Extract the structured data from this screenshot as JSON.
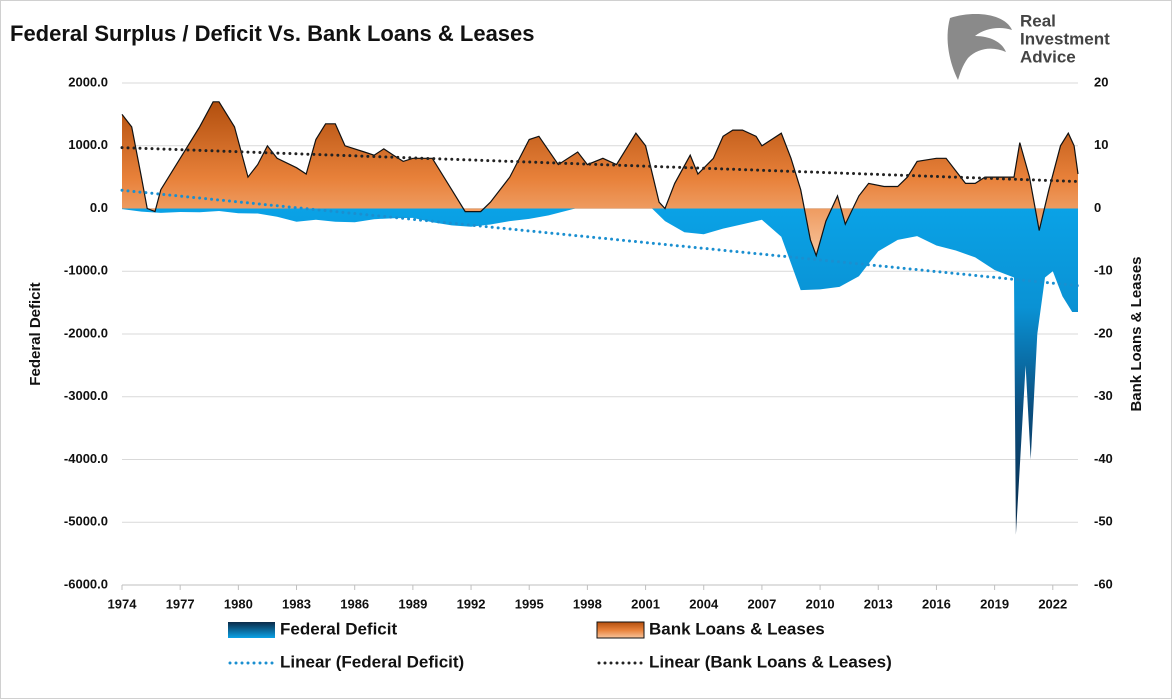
{
  "chart_data": {
    "type": "area",
    "title": "Federal Surplus / Deficit Vs. Bank Loans & Leases",
    "logo": [
      "Real",
      "Investment",
      "Advice"
    ],
    "ylabel": "Federal Deficit",
    "y2label": "Bank Loans & Leases",
    "xlim": [
      1974,
      2023.3
    ],
    "xticks": [
      1974,
      1977,
      1980,
      1983,
      1986,
      1989,
      1992,
      1995,
      1998,
      2001,
      2004,
      2007,
      2010,
      2013,
      2016,
      2019,
      2022
    ],
    "ylim": [
      -6000,
      2000
    ],
    "yticks": [
      {
        "value": 2000,
        "label": "2000.0"
      },
      {
        "value": 1000,
        "label": "1000.0"
      },
      {
        "value": 0,
        "label": "0.0"
      },
      {
        "value": -1000,
        "label": "-1000.0"
      },
      {
        "value": -2000,
        "label": "-2000.0"
      },
      {
        "value": -3000,
        "label": "-3000.0"
      },
      {
        "value": -4000,
        "label": "-4000.0"
      },
      {
        "value": -5000,
        "label": "-5000.0"
      },
      {
        "value": -6000,
        "label": "-6000.0"
      }
    ],
    "y2lim": [
      -60,
      20
    ],
    "y2ticks": [
      20,
      10,
      0,
      -10,
      -20,
      -30,
      -40,
      -50,
      -60
    ],
    "grid": true,
    "legend": "bottom",
    "series": [
      {
        "name": "Federal Deficit",
        "color": "#0a9ee0",
        "style": "area",
        "axis": "y",
        "x": [
          1974,
          1975,
          1976,
          1977,
          1978,
          1979,
          1980,
          1981,
          1982,
          1983,
          1984,
          1985,
          1986,
          1987,
          1988,
          1989,
          1990,
          1991,
          1992,
          1993,
          1994,
          1995,
          1996,
          1997,
          1998,
          1999,
          2000,
          2001,
          2002,
          2003,
          2004,
          2005,
          2006,
          2007,
          2008,
          2009,
          2010,
          2011,
          2012,
          2013,
          2014,
          2015,
          2016,
          2017,
          2018,
          2019,
          2020,
          2020.1,
          2020.6,
          2020.86,
          2021.2,
          2021.6,
          2022,
          2022.5,
          2023,
          2023.3
        ],
        "values": [
          -10,
          -50,
          -70,
          -55,
          -60,
          -40,
          -75,
          -80,
          -130,
          -210,
          -180,
          -210,
          -220,
          -170,
          -155,
          -150,
          -220,
          -270,
          -290,
          -255,
          -200,
          -165,
          -110,
          -30,
          50,
          120,
          240,
          100,
          -200,
          -380,
          -410,
          -320,
          -250,
          -180,
          -450,
          -1300,
          -1290,
          -1250,
          -1080,
          -680,
          -500,
          -440,
          -590,
          -670,
          -780,
          -980,
          -1100,
          -5200,
          -2500,
          -4000,
          -2000,
          -1100,
          -1000,
          -1400,
          -1650,
          -1650
        ]
      },
      {
        "name": "Bank Loans & Leases",
        "color": "#e8813a",
        "style": "area",
        "axis": "y2",
        "x": [
          1974,
          1974.5,
          1975,
          1975.3,
          1975.7,
          1976,
          1977,
          1978,
          1978.7,
          1979,
          1979.8,
          1980.5,
          1981,
          1981.5,
          1982,
          1983,
          1983.5,
          1984,
          1984.5,
          1985,
          1985.5,
          1986.5,
          1987,
          1987.5,
          1988,
          1988.5,
          1989,
          1990,
          1991,
          1991.7,
          1992.5,
          1993,
          1994,
          1995,
          1995.5,
          1996.5,
          1997.5,
          1998,
          1998.8,
          1999.5,
          2000.5,
          2001,
          2001.7,
          2002,
          2002.5,
          2003.3,
          2003.7,
          2004.5,
          2005,
          2005.5,
          2006,
          2006.7,
          2007,
          2007.5,
          2008,
          2008.5,
          2009,
          2009.5,
          2009.8,
          2010.3,
          2010.9,
          2011.3,
          2012,
          2012.5,
          2013.3,
          2014,
          2014.5,
          2015,
          2016,
          2016.5,
          2017,
          2017.5,
          2018,
          2018.5,
          2019.5,
          2020,
          2020.3,
          2020.8,
          2021.3,
          2021.8,
          2022.4,
          2022.8,
          2023.1,
          2023.3
        ],
        "values": [
          15,
          13,
          5,
          0,
          -0.5,
          3,
          8,
          13,
          17,
          17,
          13,
          5,
          7,
          10,
          8,
          6.5,
          5.5,
          11,
          13.5,
          13.5,
          10,
          9,
          8.5,
          9.5,
          8.5,
          7.5,
          8,
          8,
          3,
          -0.5,
          -0.5,
          1,
          5,
          11,
          11.5,
          7,
          9,
          7,
          8,
          7,
          12,
          10,
          1,
          0,
          4,
          8.5,
          5.5,
          8,
          11.5,
          12.5,
          12.5,
          11.5,
          10,
          11,
          12,
          8,
          3,
          -5,
          -7.5,
          -2,
          2,
          -2.5,
          2,
          4,
          3.5,
          3.5,
          5,
          7.5,
          8,
          8,
          6,
          4,
          4,
          5,
          5,
          5,
          10.5,
          5,
          -3.5,
          3,
          10,
          12,
          10,
          5.5
        ]
      },
      {
        "name": "Linear (Federal Deficit)",
        "color": "#1a8fd0",
        "style": "dotted",
        "axis": "y",
        "x": [
          1974,
          2023.3
        ],
        "values": [
          290,
          -1230
        ]
      },
      {
        "name": "Linear (Bank Loans & Leases)",
        "color": "#222222",
        "style": "dotted",
        "axis": "y2",
        "x": [
          1974,
          2023.3
        ],
        "values": [
          9.7,
          4.3
        ]
      }
    ]
  }
}
